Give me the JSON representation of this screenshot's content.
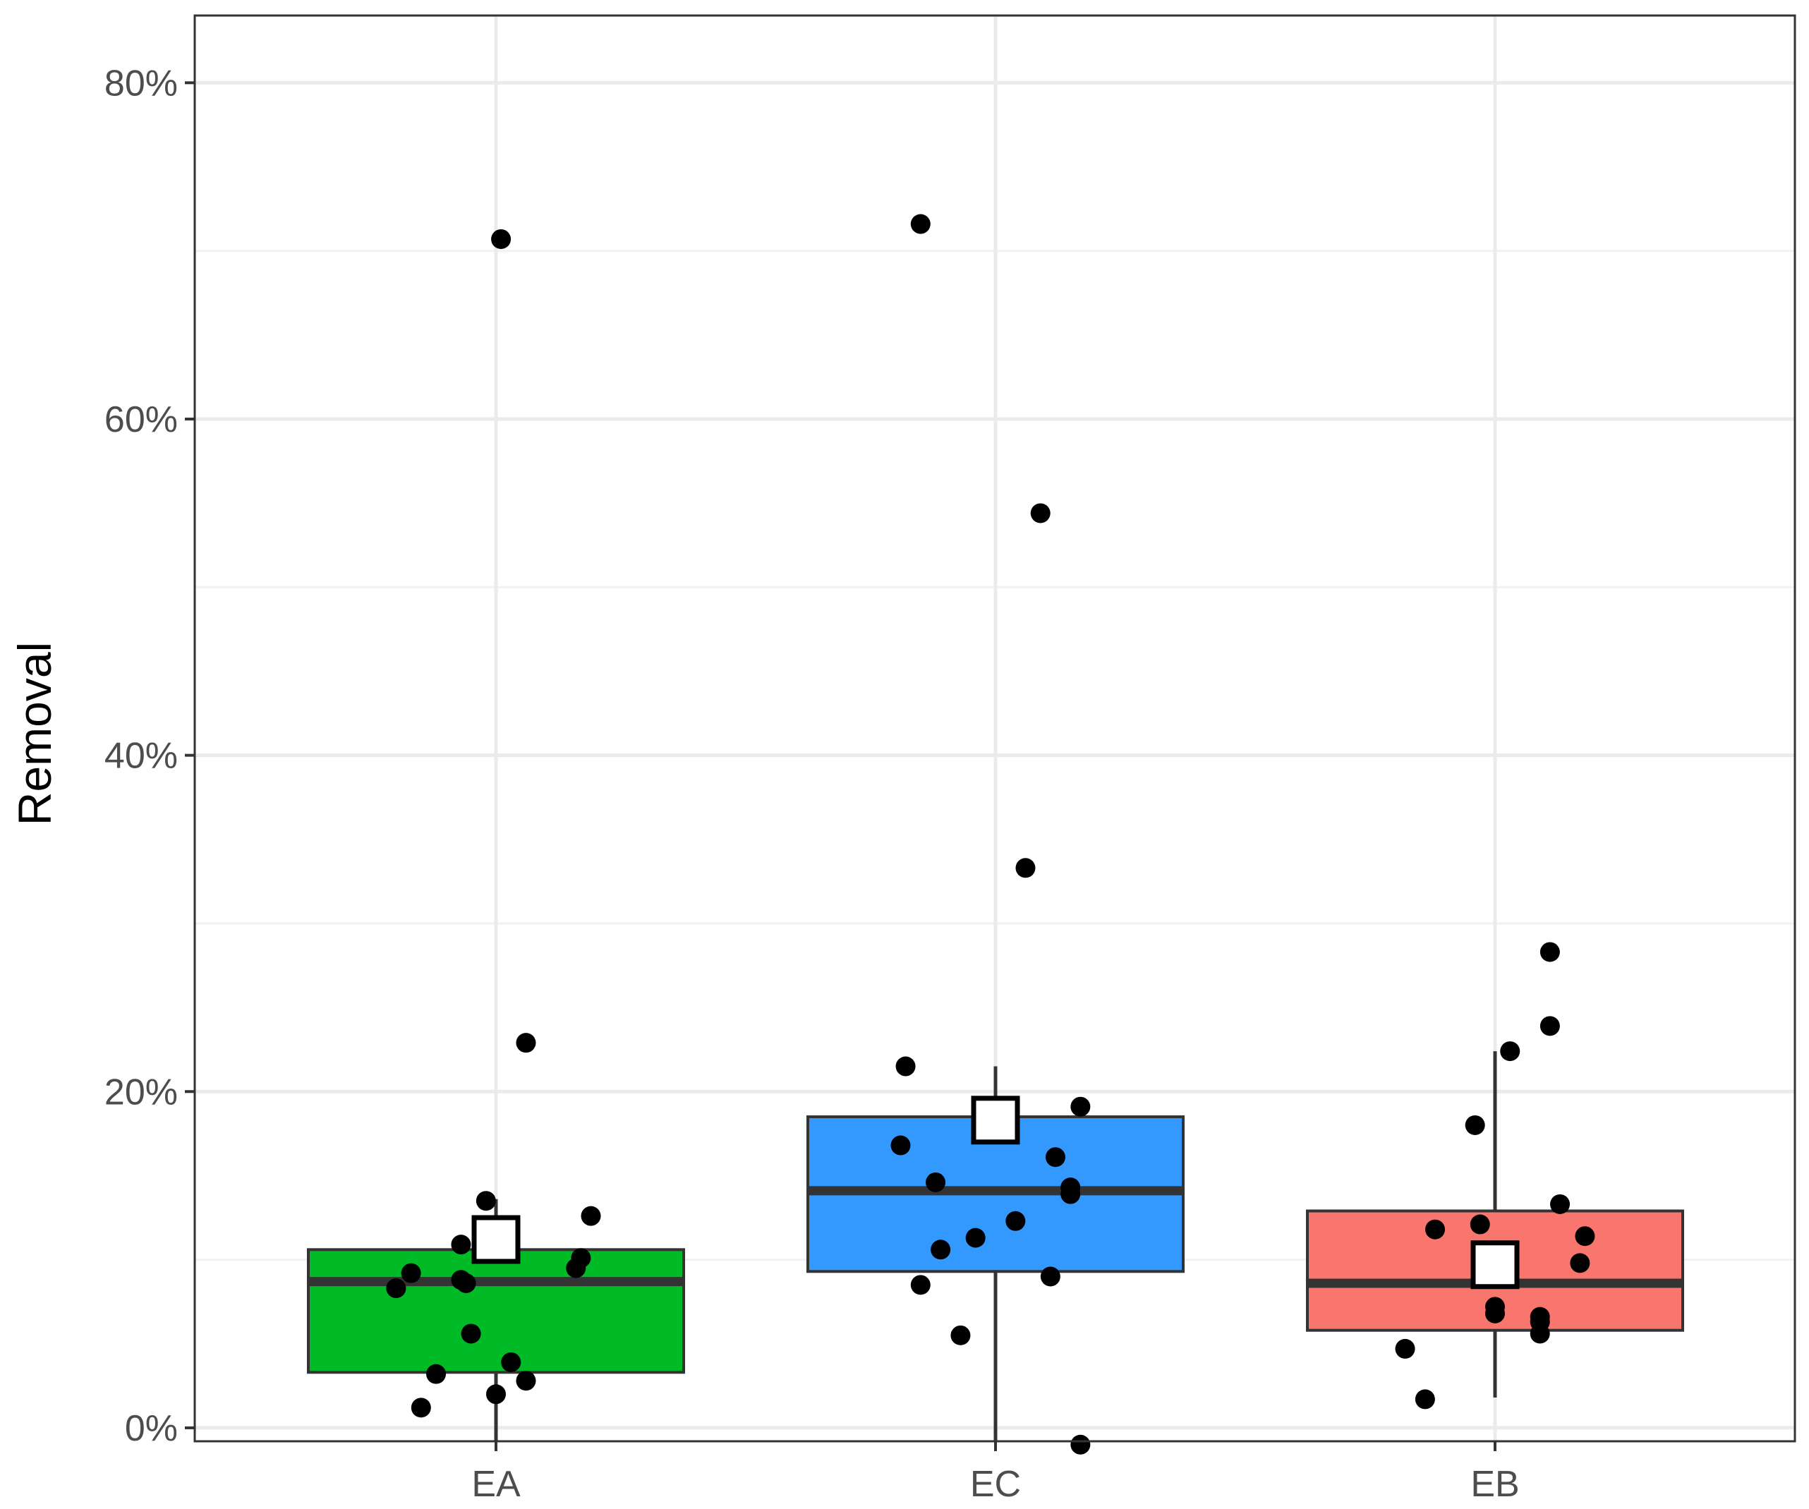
{
  "chart_data": {
    "type": "box",
    "title": "",
    "xlabel": "",
    "ylabel": "Removal",
    "ylim": [
      -0.008,
      0.84
    ],
    "y_ticks": [
      0,
      0.2,
      0.4,
      0.6,
      0.8
    ],
    "y_tick_labels": [
      "0%",
      "20%",
      "40%",
      "60%",
      "80%"
    ],
    "categories": [
      "EA",
      "EC",
      "EB"
    ],
    "grid": true,
    "legend": "none",
    "colors": {
      "EA": "#00ba26",
      "EC": "#3399ff",
      "EB": "#f8766d"
    },
    "boxes": [
      {
        "category": "EA",
        "whisker_low": -0.01,
        "q1": 0.033,
        "median": 0.087,
        "q3": 0.106,
        "whisker_high": 0.136,
        "mean": 0.112
      },
      {
        "category": "EC",
        "whisker_low": -0.01,
        "q1": 0.093,
        "median": 0.141,
        "q3": 0.185,
        "whisker_high": 0.215,
        "mean": 0.183
      },
      {
        "category": "EB",
        "whisker_low": 0.018,
        "q1": 0.058,
        "median": 0.086,
        "q3": 0.129,
        "whisker_high": 0.224,
        "mean": 0.097
      }
    ],
    "points": [
      {
        "category": "EA",
        "jitter": 0.01,
        "y": 0.707
      },
      {
        "category": "EA",
        "jitter": 0.06,
        "y": 0.229
      },
      {
        "category": "EA",
        "jitter": -0.02,
        "y": 0.135
      },
      {
        "category": "EA",
        "jitter": 0.19,
        "y": 0.126
      },
      {
        "category": "EA",
        "jitter": -0.07,
        "y": 0.109
      },
      {
        "category": "EA",
        "jitter": 0.17,
        "y": 0.101
      },
      {
        "category": "EA",
        "jitter": 0.16,
        "y": 0.095
      },
      {
        "category": "EA",
        "jitter": -0.17,
        "y": 0.092
      },
      {
        "category": "EA",
        "jitter": -0.07,
        "y": 0.088
      },
      {
        "category": "EA",
        "jitter": -0.06,
        "y": 0.086
      },
      {
        "category": "EA",
        "jitter": -0.2,
        "y": 0.083
      },
      {
        "category": "EA",
        "jitter": -0.05,
        "y": 0.056
      },
      {
        "category": "EA",
        "jitter": 0.03,
        "y": 0.039
      },
      {
        "category": "EA",
        "jitter": -0.12,
        "y": 0.032
      },
      {
        "category": "EA",
        "jitter": 0.06,
        "y": 0.028
      },
      {
        "category": "EA",
        "jitter": 0.0,
        "y": 0.02
      },
      {
        "category": "EA",
        "jitter": -0.15,
        "y": 0.012
      },
      {
        "category": "EC",
        "jitter": -0.15,
        "y": 0.716
      },
      {
        "category": "EC",
        "jitter": 0.09,
        "y": 0.544
      },
      {
        "category": "EC",
        "jitter": 0.06,
        "y": 0.333
      },
      {
        "category": "EC",
        "jitter": -0.18,
        "y": 0.215
      },
      {
        "category": "EC",
        "jitter": 0.17,
        "y": 0.191
      },
      {
        "category": "EC",
        "jitter": -0.19,
        "y": 0.168
      },
      {
        "category": "EC",
        "jitter": 0.12,
        "y": 0.161
      },
      {
        "category": "EC",
        "jitter": -0.12,
        "y": 0.146
      },
      {
        "category": "EC",
        "jitter": 0.15,
        "y": 0.143
      },
      {
        "category": "EC",
        "jitter": 0.15,
        "y": 0.139
      },
      {
        "category": "EC",
        "jitter": 0.04,
        "y": 0.123
      },
      {
        "category": "EC",
        "jitter": -0.04,
        "y": 0.113
      },
      {
        "category": "EC",
        "jitter": -0.11,
        "y": 0.106
      },
      {
        "category": "EC",
        "jitter": 0.11,
        "y": 0.09
      },
      {
        "category": "EC",
        "jitter": -0.15,
        "y": 0.085
      },
      {
        "category": "EC",
        "jitter": -0.07,
        "y": 0.055
      },
      {
        "category": "EC",
        "jitter": 0.17,
        "y": -0.01
      },
      {
        "category": "EB",
        "jitter": 0.11,
        "y": 0.283
      },
      {
        "category": "EB",
        "jitter": 0.11,
        "y": 0.239
      },
      {
        "category": "EB",
        "jitter": 0.03,
        "y": 0.224
      },
      {
        "category": "EB",
        "jitter": -0.04,
        "y": 0.18
      },
      {
        "category": "EB",
        "jitter": 0.13,
        "y": 0.133
      },
      {
        "category": "EB",
        "jitter": -0.03,
        "y": 0.121
      },
      {
        "category": "EB",
        "jitter": -0.12,
        "y": 0.118
      },
      {
        "category": "EB",
        "jitter": 0.18,
        "y": 0.114
      },
      {
        "category": "EB",
        "jitter": 0.17,
        "y": 0.098
      },
      {
        "category": "EB",
        "jitter": 0.0,
        "y": 0.072
      },
      {
        "category": "EB",
        "jitter": 0.0,
        "y": 0.068
      },
      {
        "category": "EB",
        "jitter": 0.09,
        "y": 0.066
      },
      {
        "category": "EB",
        "jitter": 0.09,
        "y": 0.063
      },
      {
        "category": "EB",
        "jitter": 0.09,
        "y": 0.056
      },
      {
        "category": "EB",
        "jitter": -0.18,
        "y": 0.047
      },
      {
        "category": "EB",
        "jitter": -0.14,
        "y": 0.017
      }
    ]
  }
}
